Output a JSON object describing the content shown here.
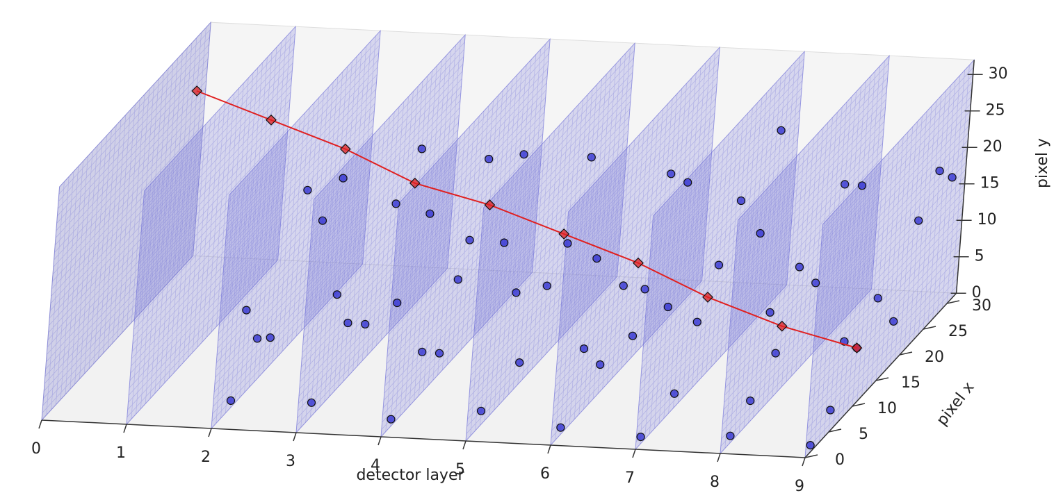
{
  "chart_data": {
    "type": "scatter3d",
    "xlabel": "detector layer",
    "ylabel": "pixel x",
    "zlabel": "pixel y",
    "xlim": [
      0,
      9
    ],
    "ylim": [
      0,
      32
    ],
    "zlim": [
      0,
      32
    ],
    "xticks": [
      0,
      1,
      2,
      3,
      4,
      5,
      6,
      7,
      8,
      9
    ],
    "yticks": [
      0,
      5,
      10,
      15,
      20,
      25,
      30
    ],
    "zticks": [
      0,
      5,
      10,
      15,
      20,
      25,
      30
    ],
    "plane_color": "#6a6ad8",
    "series": [
      {
        "color": "#2a2ad0",
        "line": false,
        "x": [
          2,
          2,
          2,
          2,
          2,
          2,
          2,
          3,
          3,
          3,
          3,
          3,
          3,
          3,
          3,
          4,
          4,
          4,
          4,
          4,
          4,
          4,
          4,
          5,
          5,
          5,
          5,
          5,
          5,
          5,
          6,
          6,
          6,
          6,
          6,
          6,
          6,
          6,
          7,
          7,
          7,
          7,
          7,
          7,
          7,
          7,
          8,
          8,
          8,
          8,
          8,
          8,
          8,
          8,
          9,
          9,
          9,
          9,
          9,
          9,
          9,
          9,
          9
        ],
        "y": [
          4,
          6,
          9,
          18,
          22,
          26,
          12,
          3,
          10,
          14,
          19,
          24,
          27,
          7,
          21,
          2,
          8,
          12,
          17,
          20,
          25,
          28,
          15,
          3,
          11,
          16,
          20,
          24,
          27,
          9,
          2,
          10,
          14,
          19,
          23,
          27,
          6,
          17,
          1,
          8,
          12,
          16,
          20,
          25,
          28,
          5,
          2,
          6,
          11,
          15,
          19,
          24,
          28,
          9,
          1,
          5,
          10,
          14,
          18,
          22,
          26,
          29,
          7
        ],
        "z": [
          1,
          12,
          6,
          20,
          13,
          16,
          4,
          2,
          8,
          5,
          18,
          22,
          11,
          14,
          3,
          1,
          6,
          3,
          15,
          24,
          9,
          19,
          11,
          2,
          3,
          10,
          13,
          22,
          6,
          14,
          1,
          4,
          12,
          8,
          21,
          17,
          9,
          3,
          1,
          2,
          9,
          14,
          20,
          12,
          24,
          16,
          1,
          3,
          6,
          15,
          10,
          20,
          17,
          13,
          1,
          3,
          8,
          12,
          6,
          17,
          21,
          18,
          11
        ]
      },
      {
        "color": "#e02020",
        "line": true,
        "x": [
          0,
          1,
          2,
          3,
          4,
          5,
          6,
          7,
          8,
          9
        ],
        "y": [
          30,
          28,
          26,
          23,
          21,
          19,
          17,
          14,
          12,
          10
        ],
        "z": [
          24,
          22,
          20,
          18,
          17,
          15,
          13,
          11,
          9,
          8
        ]
      }
    ]
  }
}
